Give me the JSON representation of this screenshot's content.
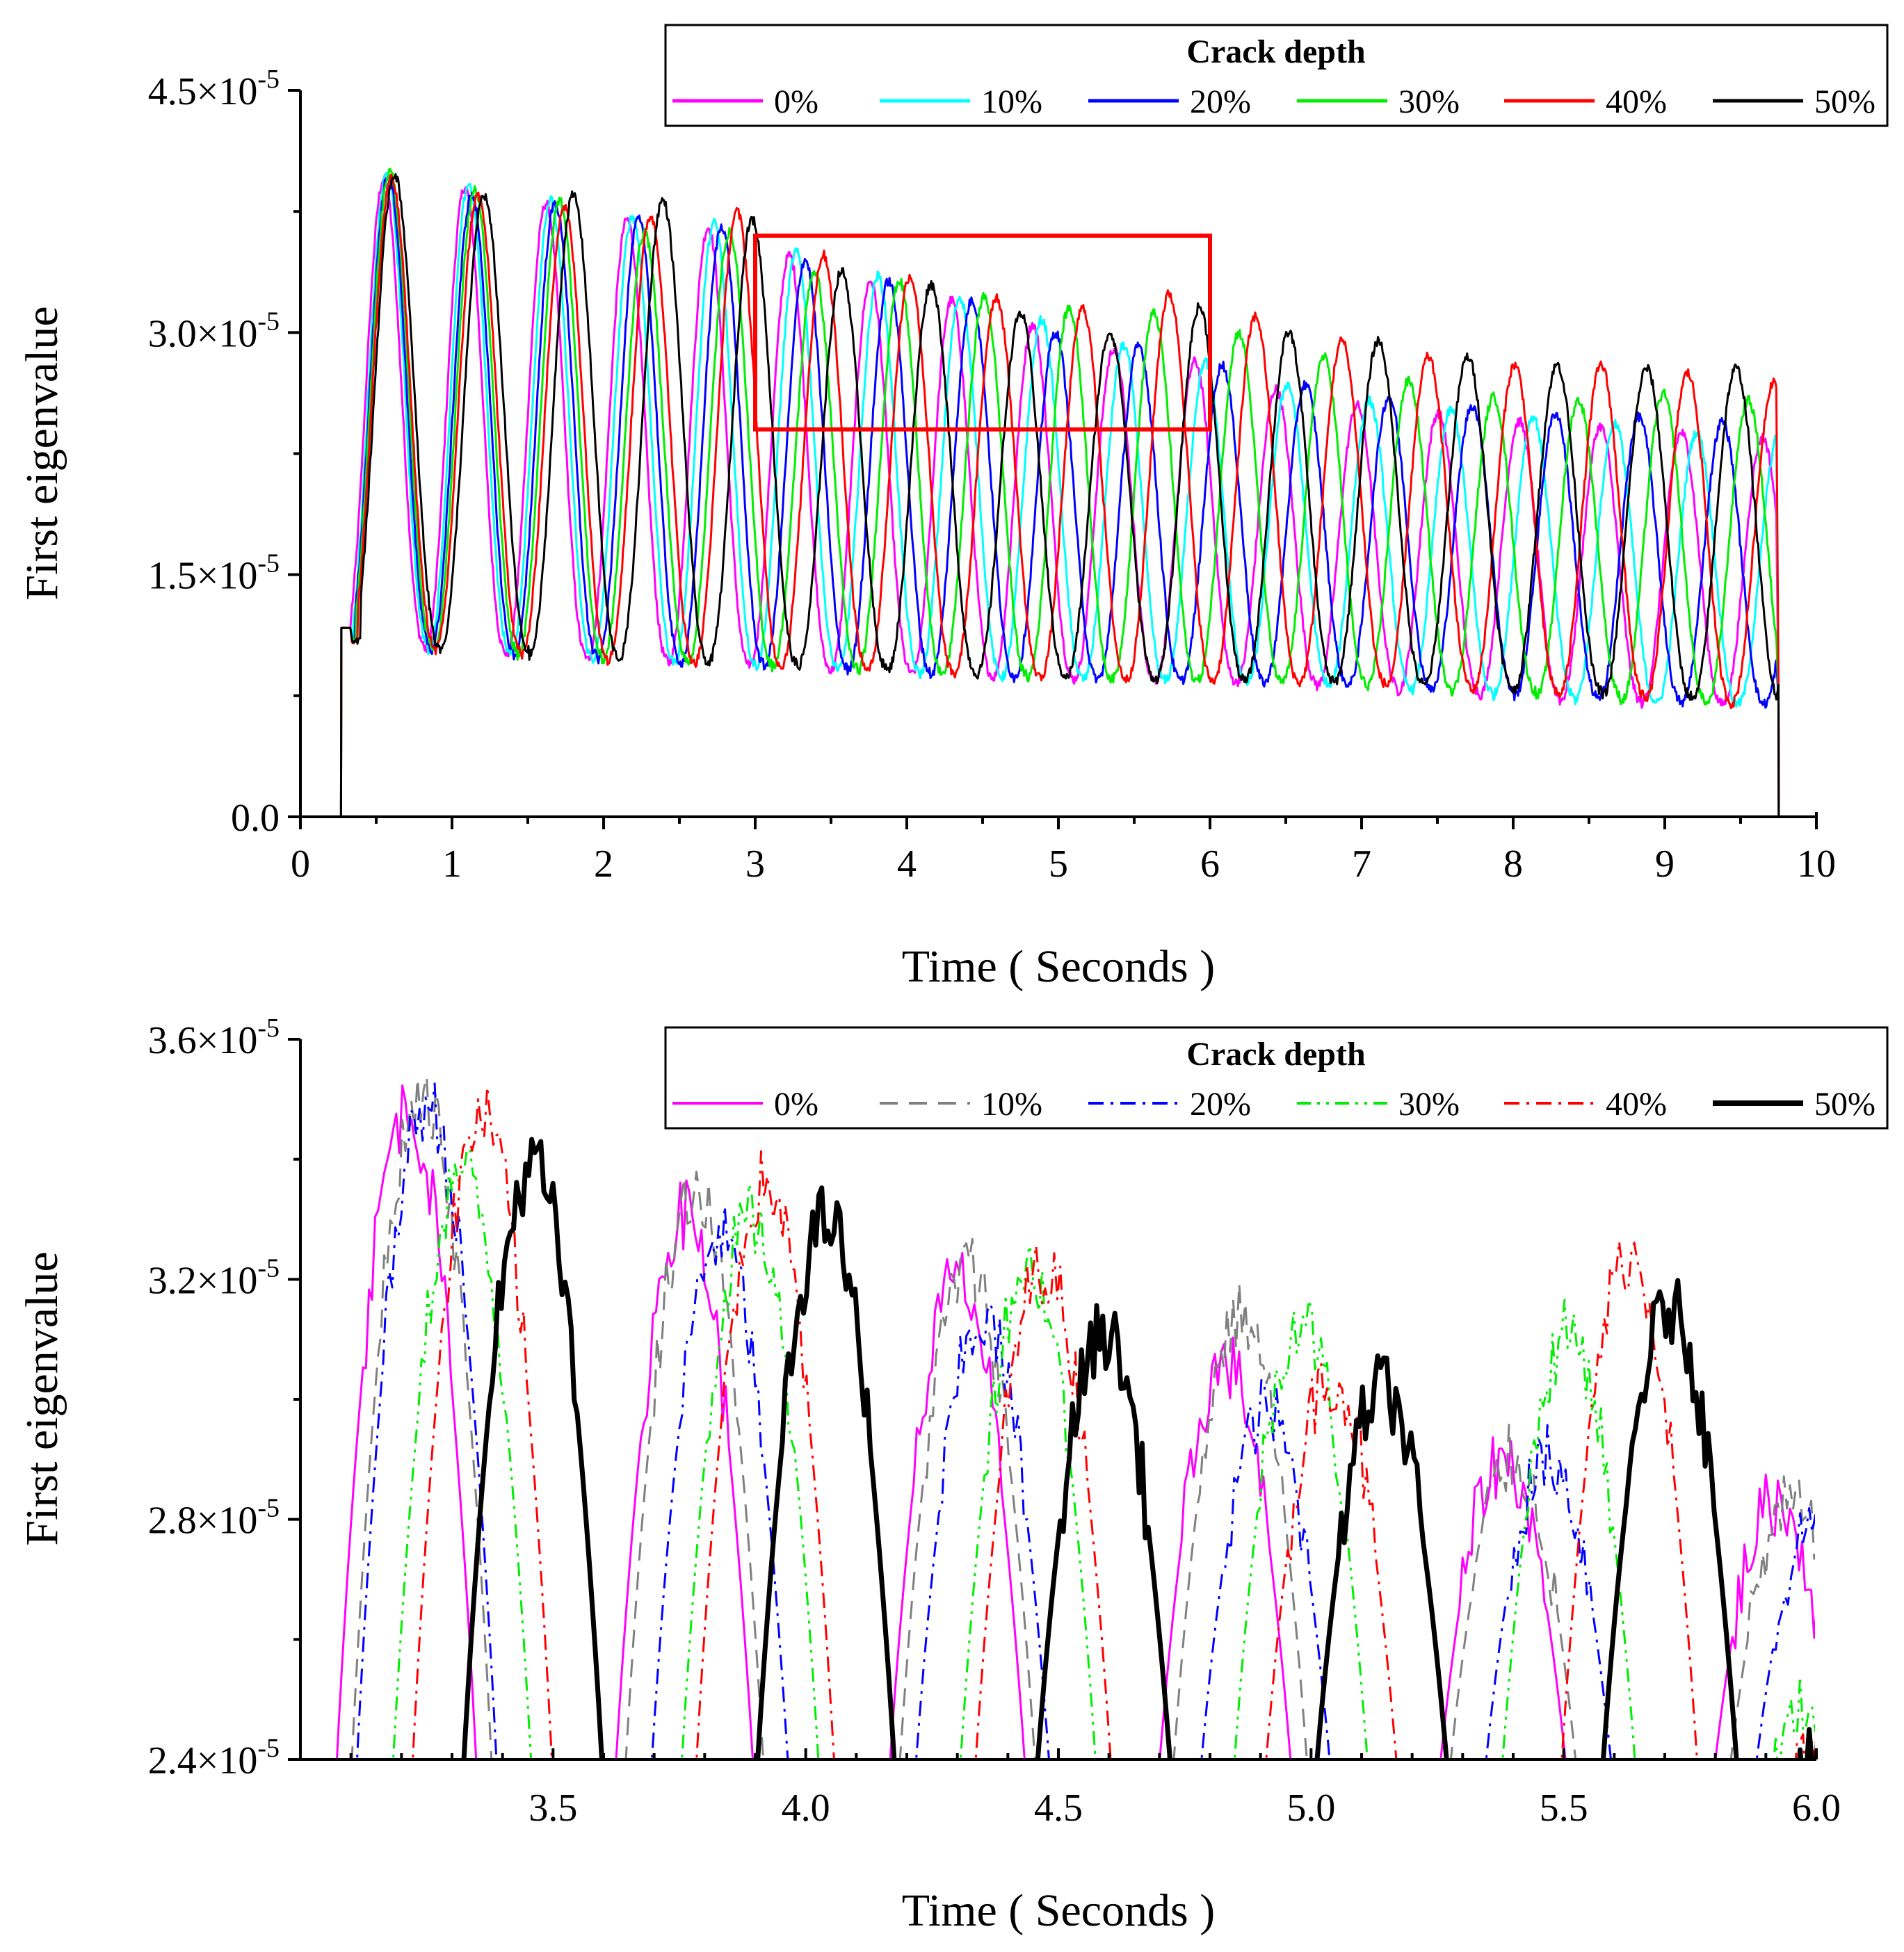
{
  "chart_data": [
    {
      "type": "line",
      "xlabel": "Time ( Seconds )",
      "ylabel": "First eigenvalue",
      "xlim": [
        0,
        10
      ],
      "ylim": [
        0,
        4.5e-05
      ],
      "x_ticks": [
        0,
        1,
        2,
        3,
        4,
        5,
        6,
        7,
        8,
        9,
        10
      ],
      "x_tick_labels": [
        "0",
        "1",
        "2",
        "3",
        "4",
        "5",
        "6",
        "7",
        "8",
        "9",
        "10"
      ],
      "y_ticks": [
        0,
        1.5e-05,
        3e-05,
        4.5e-05
      ],
      "y_tick_labels": [
        {
          "mantissa": "0.0",
          "exp": ""
        },
        {
          "mantissa": "1.5×10",
          "exp": "-5"
        },
        {
          "mantissa": "3.0×10",
          "exp": "-5"
        },
        {
          "mantissa": "4.5×10",
          "exp": "-5"
        }
      ],
      "legend": {
        "title": "Crack depth",
        "position": "top-right"
      },
      "signal": {
        "start": 0.27,
        "end": 9.75,
        "step_value": 1.17e-05
      },
      "zoom_box": {
        "x": [
          3.0,
          6.0
        ],
        "y": [
          2.4e-05,
          3.6e-05
        ],
        "color": "#ff0000"
      },
      "series": [
        {
          "name": "0%",
          "color": "#ff00ff",
          "t_first_peak": 0.55,
          "period": 0.535,
          "peaks": [
            3.95e-05,
            3.9e-05,
            3.8e-05,
            3.7e-05,
            3.65e-05,
            3.48e-05,
            3.32e-05,
            3.2e-05,
            3.05e-05,
            2.9e-05,
            2.82e-05,
            2.65e-05,
            2.55e-05,
            2.5e-05,
            2.45e-05,
            2.42e-05,
            2.38e-05,
            2.35e-05
          ],
          "troughs": [
            1.07e-05,
            1.03e-05,
            1e-05,
            9.7e-06,
            9.5e-06,
            9.2e-06,
            9e-06,
            8.8e-06,
            8.6e-06,
            8.5e-06,
            8.4e-06,
            8.3e-06,
            8.1e-06,
            7.8e-06,
            7.5e-06,
            7.2e-06,
            7e-06,
            7e-06
          ]
        },
        {
          "name": "10%",
          "color": "#00ffff",
          "t_first_peak": 0.57,
          "period": 0.54,
          "peaks": [
            3.98e-05,
            3.92e-05,
            3.82e-05,
            3.72e-05,
            3.68e-05,
            3.5e-05,
            3.35e-05,
            3.22e-05,
            3.08e-05,
            2.92e-05,
            2.82e-05,
            2.68e-05,
            2.58e-05,
            2.52e-05,
            2.48e-05,
            2.44e-05,
            2.38e-05,
            2.36e-05
          ],
          "troughs": [
            1.07e-05,
            1.03e-05,
            1e-05,
            9.7e-06,
            9.5e-06,
            9.3e-06,
            9e-06,
            8.8e-06,
            8.6e-06,
            8.5e-06,
            8.4e-06,
            8.3e-06,
            8.1e-06,
            7.8e-06,
            7.5e-06,
            7.2e-06,
            7e-06,
            7e-06
          ]
        },
        {
          "name": "20%",
          "color": "#0000ff",
          "t_first_peak": 0.58,
          "period": 0.55,
          "peaks": [
            3.98e-05,
            3.85e-05,
            3.8e-05,
            3.7e-05,
            3.66e-05,
            3.45e-05,
            3.32e-05,
            3.2e-05,
            3e-05,
            2.92e-05,
            2.8e-05,
            2.68e-05,
            2.6e-05,
            2.55e-05,
            2.5e-05,
            2.48e-05,
            2.45e-05,
            2.42e-05
          ],
          "troughs": [
            1.07e-05,
            1.03e-05,
            1e-05,
            9.7e-06,
            9.5e-06,
            9.3e-06,
            9e-06,
            8.8e-06,
            8.6e-06,
            8.5e-06,
            8.4e-06,
            8.3e-06,
            8.1e-06,
            7.8e-06,
            7.5e-06,
            7.2e-06,
            7e-06,
            7e-06
          ]
        },
        {
          "name": "30%",
          "color": "#00ee00",
          "t_first_peak": 0.59,
          "period": 0.56,
          "peaks": [
            4e-05,
            3.88e-05,
            3.82e-05,
            3.62e-05,
            3.62e-05,
            3.38e-05,
            3.32e-05,
            3.22e-05,
            3.15e-05,
            3.12e-05,
            3e-05,
            2.85e-05,
            2.7e-05,
            2.6e-05,
            2.58e-05,
            2.62e-05,
            2.58e-05,
            2.55e-05
          ],
          "troughs": [
            1.07e-05,
            1.03e-05,
            1e-05,
            9.7e-06,
            9.5e-06,
            9.3e-06,
            9e-06,
            8.8e-06,
            8.6e-06,
            8.5e-06,
            8.4e-06,
            8.3e-06,
            8.1e-06,
            7.8e-06,
            7.5e-06,
            7.2e-06,
            7e-06,
            7e-06
          ]
        },
        {
          "name": "40%",
          "color": "#ff0000",
          "t_first_peak": 0.6,
          "period": 0.57,
          "peaks": [
            3.95e-05,
            3.85e-05,
            3.78e-05,
            3.72e-05,
            3.75e-05,
            3.48e-05,
            3.35e-05,
            3.22e-05,
            3.15e-05,
            3.24e-05,
            3.1e-05,
            2.95e-05,
            2.85e-05,
            2.8e-05,
            2.8e-05,
            2.75e-05,
            2.7e-05,
            2.7e-05
          ],
          "troughs": [
            1.07e-05,
            1.03e-05,
            1e-05,
            9.7e-06,
            9.5e-06,
            9.3e-06,
            9e-06,
            8.8e-06,
            8.6e-06,
            8.5e-06,
            8.4e-06,
            8.3e-06,
            8.1e-06,
            7.8e-06,
            7.5e-06,
            7.2e-06,
            7e-06,
            7e-06
          ]
        },
        {
          "name": "50%",
          "color": "#000000",
          "t_first_peak": 0.62,
          "period": 0.59,
          "peaks": [
            3.98e-05,
            3.85e-05,
            3.85e-05,
            3.82e-05,
            3.7e-05,
            3.38e-05,
            3.3e-05,
            3.12e-05,
            3e-05,
            3.16e-05,
            3e-05,
            2.95e-05,
            2.85e-05,
            2.8e-05,
            2.78e-05,
            2.78e-05,
            2.75e-05,
            2.72e-05
          ],
          "troughs": [
            1.07e-05,
            1.03e-05,
            1e-05,
            9.7e-06,
            9.5e-06,
            9.3e-06,
            9e-06,
            8.8e-06,
            8.6e-06,
            8.5e-06,
            8.4e-06,
            8.3e-06,
            8.1e-06,
            7.8e-06,
            7.5e-06,
            7.2e-06,
            7e-06,
            7e-06
          ]
        }
      ]
    },
    {
      "type": "line",
      "xlabel": "Time ( Seconds )",
      "ylabel": "First eigenvalue",
      "xlim": [
        3.0,
        6.0
      ],
      "ylim": [
        2.4e-05,
        3.6e-05
      ],
      "x_ticks": [
        3.5,
        4.0,
        4.5,
        5.0,
        5.5,
        6.0
      ],
      "x_tick_labels": [
        "3.5",
        "4.0",
        "4.5",
        "5.0",
        "5.5",
        "6.0"
      ],
      "y_ticks": [
        2.4e-05,
        2.8e-05,
        3.2e-05,
        3.6e-05
      ],
      "y_tick_labels": [
        {
          "mantissa": "2.4×10",
          "exp": "-5"
        },
        {
          "mantissa": "2.8×10",
          "exp": "-5"
        },
        {
          "mantissa": "3.2×10",
          "exp": "-5"
        },
        {
          "mantissa": "3.6×10",
          "exp": "-5"
        }
      ],
      "legend": {
        "title": "Crack depth",
        "position": "top-right"
      },
      "series": [
        {
          "name": "0%",
          "color": "#ff00ff",
          "style": "solid",
          "width": 3,
          "peak_times": [
            3.21,
            3.76,
            4.3,
            4.83,
            5.38,
            5.92
          ],
          "peaks": [
            3.48e-05,
            3.31e-05,
            3.2e-05,
            3.06e-05,
            2.9e-05,
            2.83e-05
          ]
        },
        {
          "name": "10%",
          "color": "#808080",
          "style": "dashed",
          "width": 3,
          "peak_times": [
            3.24,
            3.78,
            4.32,
            4.86,
            5.4,
            5.95
          ],
          "peaks": [
            3.51e-05,
            3.35e-05,
            3.22e-05,
            3.14e-05,
            2.9e-05,
            2.82e-05
          ]
        },
        {
          "name": "20%",
          "color": "#0000ff",
          "style": "dash-dot",
          "width": 3,
          "peak_times": [
            3.25,
            3.83,
            4.35,
            4.91,
            5.47,
            6.0
          ],
          "peaks": [
            3.49e-05,
            3.27e-05,
            3.13e-05,
            2.98e-05,
            2.9e-05,
            2.8e-05
          ]
        },
        {
          "name": "30%",
          "color": "#00ee00",
          "style": "dash-dot-dot",
          "width": 3,
          "peak_times": [
            3.32,
            3.89,
            4.44,
            4.98,
            5.51,
            6.0
          ],
          "peaks": [
            3.38e-05,
            3.3e-05,
            3.22e-05,
            3.13e-05,
            3.11e-05,
            2.5e-05
          ]
        },
        {
          "name": "40%",
          "color": "#ff0000",
          "style": "dash-dot",
          "width": 3,
          "peak_times": [
            3.36,
            3.92,
            4.47,
            5.04,
            5.63,
            6.0
          ],
          "peaks": [
            3.47e-05,
            3.36e-05,
            3.22e-05,
            3.04e-05,
            3.24e-05,
            2.4e-05
          ]
        },
        {
          "name": "50%",
          "color": "#000000",
          "style": "solid",
          "width": 7,
          "peak_times": [
            3.46,
            4.04,
            4.59,
            5.14,
            5.71,
            6.0
          ],
          "peaks": [
            3.39e-05,
            3.3e-05,
            3.11e-05,
            3.02e-05,
            3.15e-05,
            2.4e-05
          ]
        }
      ]
    }
  ]
}
